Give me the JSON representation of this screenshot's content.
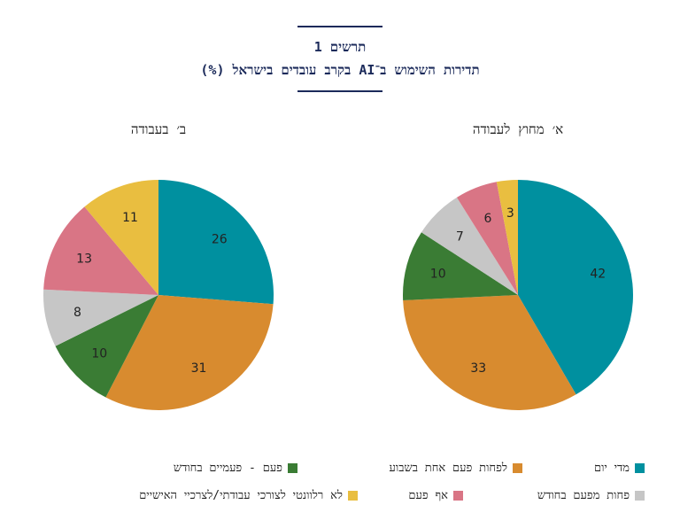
{
  "figure": {
    "label": "תרשים 1",
    "title": "תדירות השימוש ב־AI בקרב עובדים בישראל (%)"
  },
  "legend": [
    {
      "label": "מדי יום",
      "color": "#00909f"
    },
    {
      "label": "לפחות פעם אחת בשבוע",
      "color": "#d88b2f"
    },
    {
      "label": "פעם - פעמיים בחודש",
      "color": "#3a7c34"
    },
    {
      "label": "פחות מפעם בחודש",
      "color": "#c6c6c6"
    },
    {
      "label": "אף פעם",
      "color": "#d97585"
    },
    {
      "label": "לא רלוונטי לצורכי עבודתי/לצרכיי האישיים",
      "color": "#e9be40"
    }
  ],
  "chart_data": [
    {
      "type": "pie",
      "title": "א׳ מחוץ לעבודה",
      "categories": [
        "מדי יום",
        "לפחות פעם אחת בשבוע",
        "פעם - פעמיים בחודש",
        "פחות מפעם בחודש",
        "אף פעם",
        "לא רלוונטי לצורכי עבודתי/לצרכיי האישיים"
      ],
      "values": [
        42,
        33,
        10,
        7,
        6,
        3
      ],
      "colors": [
        "#00909f",
        "#d88b2f",
        "#3a7c34",
        "#c6c6c6",
        "#d97585",
        "#e9be40"
      ],
      "direction": "clockwise",
      "start": "top"
    },
    {
      "type": "pie",
      "title": "ב׳ בעבודה",
      "categories": [
        "מדי יום",
        "לפחות פעם אחת בשבוע",
        "פעם - פעמיים בחודש",
        "פחות מפעם בחודש",
        "אף פעם",
        "לא רלוונטי לצורכי עבודתי/לצרכיי האישיים"
      ],
      "values": [
        26,
        31,
        10,
        8,
        13,
        11
      ],
      "colors": [
        "#00909f",
        "#d88b2f",
        "#3a7c34",
        "#c6c6c6",
        "#d97585",
        "#e9be40"
      ],
      "direction": "clockwise",
      "start": "top"
    }
  ]
}
